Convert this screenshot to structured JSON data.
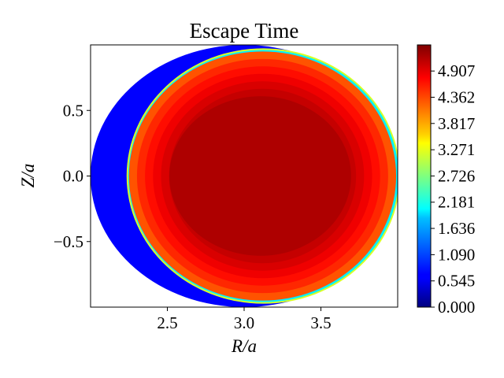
{
  "chart_data": {
    "type": "heatmap",
    "title": "Escape Time",
    "xlabel": "R/a",
    "ylabel": "Z/a",
    "xlim": [
      2.0,
      4.0
    ],
    "ylim": [
      -1.0,
      1.0
    ],
    "x_ticks": [
      2.5,
      3.0,
      3.5
    ],
    "x_tick_labels": [
      "2.5",
      "3.0",
      "3.5"
    ],
    "y_ticks": [
      -0.5,
      0.0,
      0.5
    ],
    "y_tick_labels": [
      "−0.5",
      "0.0",
      "0.5"
    ],
    "grid": false,
    "colormap": "jet",
    "colorbar": {
      "min": 0.0,
      "max": 5.45,
      "ticks": [
        0.0,
        0.545,
        1.09,
        1.636,
        2.181,
        2.726,
        3.271,
        3.817,
        4.362,
        4.907
      ],
      "tick_labels": [
        "0.000",
        "0.545",
        "1.090",
        "1.636",
        "2.181",
        "2.726",
        "3.271",
        "3.817",
        "4.362",
        "4.907"
      ]
    },
    "domain": {
      "shape": "ellipse",
      "center": [
        3.0,
        0.0
      ],
      "semi_axis_R": 1.0,
      "semi_axis_Z": 1.0
    },
    "regions": [
      {
        "description": "outer crescent (low field side region near R=2.0-2.2)",
        "value": 0.65
      },
      {
        "description": "thin transition band",
        "value": 2.0
      },
      {
        "description": "outer rings of inner ellipse",
        "value": 4.7
      },
      {
        "description": "core of inner ellipse",
        "value": 5.2
      }
    ],
    "inner_region": {
      "center": [
        3.12,
        0.0
      ],
      "semi_axis_R": 0.87,
      "semi_axis_Z": 0.95
    }
  }
}
